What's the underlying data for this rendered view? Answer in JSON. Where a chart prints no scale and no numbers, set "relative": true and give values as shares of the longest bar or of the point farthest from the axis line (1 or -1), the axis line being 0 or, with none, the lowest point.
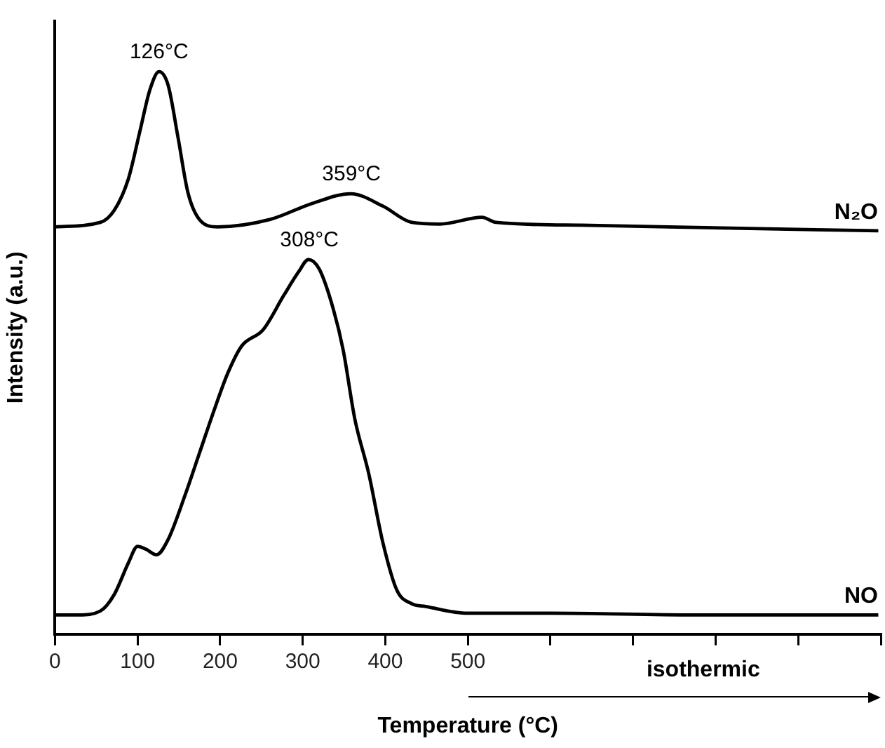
{
  "chart_data": {
    "type": "line",
    "relative": true,
    "xlabel": "Temperature (°C)",
    "ylabel": "Intensity (a.u.)",
    "xlim": [
      0,
      1000
    ],
    "xticks": [
      0,
      100,
      200,
      300,
      400,
      500,
      {
        "value": 600,
        "label": null
      },
      {
        "value": 700,
        "label": null
      },
      {
        "value": 800,
        "label": null
      },
      {
        "value": 900,
        "label": null
      },
      {
        "value": 1000,
        "label": null
      }
    ],
    "grid": false,
    "legend": false,
    "marker": "none",
    "line_style": "solid",
    "series": [
      {
        "name": "N₂O",
        "color": "#000000",
        "x": [
          0,
          55,
          72,
          89,
          103,
          115,
          126,
          137,
          149,
          161,
          175,
          197,
          260,
          312,
          358,
          397,
          432,
          466,
          517,
          534,
          637,
          808,
          997
        ],
        "values": [
          0.724,
          0.732,
          0.754,
          0.81,
          0.895,
          0.968,
          1.0,
          0.976,
          0.883,
          0.785,
          0.737,
          0.724,
          0.737,
          0.766,
          0.783,
          0.761,
          0.732,
          0.729,
          0.741,
          0.732,
          0.727,
          0.722,
          0.717
        ]
      },
      {
        "name": "NO",
        "color": "#000000",
        "x": [
          0,
          29,
          55,
          72,
          89,
          100,
          110,
          123,
          137,
          158,
          175,
          192,
          209,
          226,
          252,
          277,
          295,
          307,
          320,
          337,
          349,
          363,
          380,
          397,
          414,
          432,
          449,
          500,
          603,
          774,
          997
        ],
        "values": [
          0.034,
          0.034,
          0.041,
          0.071,
          0.127,
          0.156,
          0.151,
          0.141,
          0.168,
          0.249,
          0.322,
          0.395,
          0.463,
          0.512,
          0.541,
          0.602,
          0.644,
          0.666,
          0.649,
          0.578,
          0.505,
          0.383,
          0.285,
          0.163,
          0.078,
          0.054,
          0.049,
          0.037,
          0.037,
          0.034,
          0.034
        ]
      }
    ],
    "annotations": [
      {
        "text": "126°C",
        "x": 126,
        "y": 1.0
      },
      {
        "text": "359°C",
        "x": 359,
        "y": 0.783
      },
      {
        "text": "308°C",
        "x": 308,
        "y": 0.666
      },
      "isothermic"
    ]
  }
}
